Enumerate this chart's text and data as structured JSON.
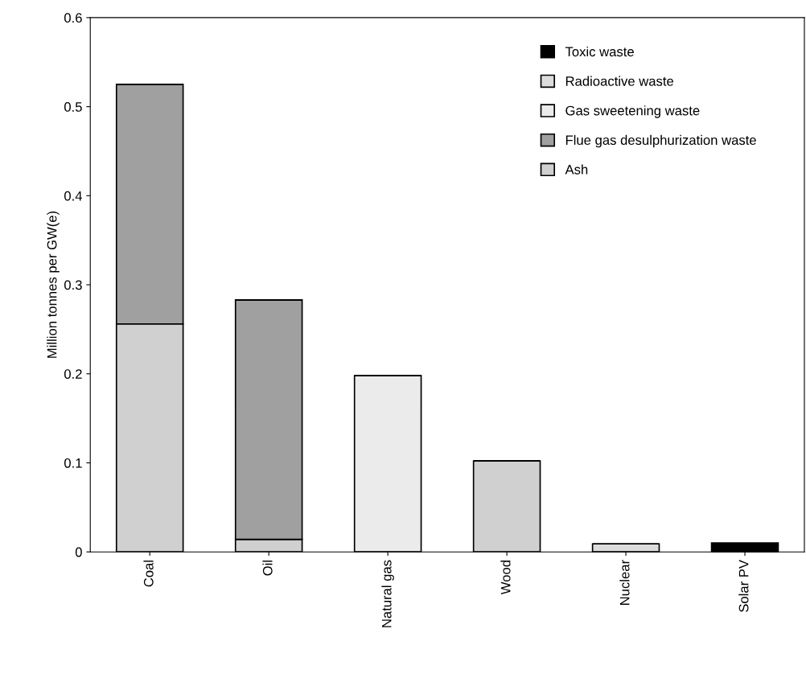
{
  "chart_data": {
    "type": "bar",
    "stacked": true,
    "ylabel": "Million tonnes per GW(e)",
    "categories": [
      "Coal",
      "Oil",
      "Natural gas",
      "Wood",
      "Nuclear",
      "Solar PV"
    ],
    "series": [
      {
        "name": "Ash",
        "color": "#d0d0d0",
        "values": [
          0.256,
          0.014,
          0,
          0.102,
          0,
          0
        ]
      },
      {
        "name": "Flue gas desulphurization waste",
        "color": "#a0a0a0",
        "values": [
          0.269,
          0.269,
          0,
          0,
          0,
          0
        ]
      },
      {
        "name": "Gas sweetening waste",
        "color": "#ebebeb",
        "values": [
          0,
          0,
          0.198,
          0,
          0,
          0
        ]
      },
      {
        "name": "Radioactive waste",
        "color": "#dcdcdc",
        "values": [
          0,
          0,
          0,
          0,
          0.009,
          0
        ]
      },
      {
        "name": "Toxic waste",
        "color": "#000000",
        "values": [
          0,
          0,
          0,
          0,
          0,
          0.01
        ]
      }
    ],
    "ylim": [
      0,
      0.6
    ],
    "yticks": [
      {
        "value": 0,
        "label": "0"
      },
      0.1,
      0.2,
      0.3,
      0.4,
      0.5,
      0.6
    ],
    "grid": false,
    "legend": "top right"
  }
}
